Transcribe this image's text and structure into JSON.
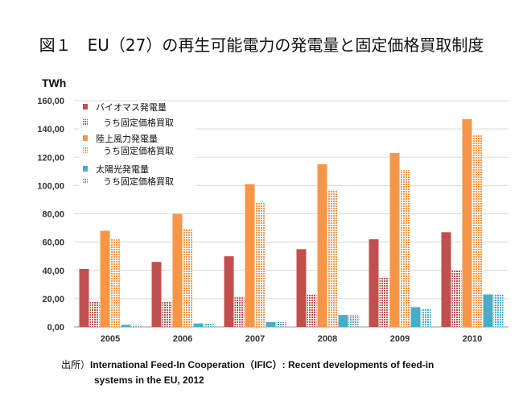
{
  "title": "図１　EU（27）の再生可能電力の発電量と固定価格買取制度",
  "source": {
    "prefix": "出所）",
    "line1": "International Feed-In Cooperation（IFIC）: Recent developments of feed-in",
    "line2": "systems in the EU, 2012"
  },
  "chart_data": {
    "type": "bar",
    "ylabel": "TWh",
    "ylim": [
      0,
      160
    ],
    "ytick_labels": [
      "0,00",
      "20,00",
      "40,00",
      "60,00",
      "80,00",
      "100,00",
      "120,00",
      "140,00",
      "160,00"
    ],
    "grid": true,
    "legend_position": "top-left",
    "categories": [
      "2005",
      "2006",
      "2007",
      "2008",
      "2009",
      "2010"
    ],
    "series": [
      {
        "name": "バイオマス発電量",
        "values": [
          41,
          46,
          50,
          55,
          62,
          67
        ],
        "color": "#c0504d",
        "pattern": "solid"
      },
      {
        "name": "うち固定価格買取",
        "values": [
          18,
          18,
          21,
          23,
          35,
          40
        ],
        "color": "#c0504d",
        "pattern": "dotted"
      },
      {
        "name": "陸上風力発電量",
        "values": [
          68,
          80,
          101,
          115,
          123,
          147
        ],
        "color": "#f79646",
        "pattern": "solid"
      },
      {
        "name": "うち固定価格買取",
        "values": [
          62,
          69,
          88,
          97,
          111,
          136
        ],
        "color": "#f79646",
        "pattern": "dotted"
      },
      {
        "name": "太陽光発電量",
        "values": [
          1.5,
          2.5,
          3.5,
          8.5,
          14,
          23
        ],
        "color": "#4bacc6",
        "pattern": "solid"
      },
      {
        "name": "うち固定価格買取",
        "values": [
          1.5,
          2.5,
          3.5,
          8.5,
          13,
          23
        ],
        "color": "#4bacc6",
        "pattern": "dotted"
      }
    ]
  }
}
